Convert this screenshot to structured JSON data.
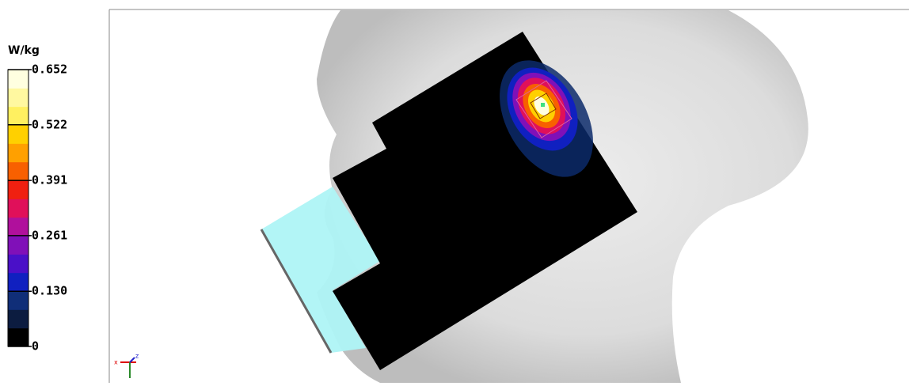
{
  "colorbar": {
    "unit": "W/kg",
    "lim": [
      0,
      0.652
    ],
    "ticks": [
      0,
      {
        "value": 0.13,
        "label": "0.130"
      },
      0.261,
      0.391,
      0.522,
      0.652
    ],
    "colors": [
      "#000000",
      "#0c1c40",
      "#102e78",
      "#1020c0",
      "#4a10c8",
      "#8010b8",
      "#b0109c",
      "#e0105a",
      "#f02010",
      "#f86000",
      "#ffa000",
      "#ffd000",
      "#fff060",
      "#fff8a0",
      "#ffffe0"
    ]
  },
  "triad": {
    "x": "x",
    "z": "z"
  }
}
